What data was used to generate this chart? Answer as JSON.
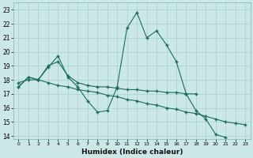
{
  "xlabel": "Humidex (Indice chaleur)",
  "ylabel": "",
  "background_color": "#cce8e6",
  "grid_color": "#aad4d0",
  "line_color": "#1a6b5e",
  "xlim": [
    -0.5,
    23.5
  ],
  "ylim": [
    13.8,
    23.5
  ],
  "yticks": [
    14,
    15,
    16,
    17,
    18,
    19,
    20,
    21,
    22,
    23
  ],
  "xticks": [
    0,
    1,
    2,
    3,
    4,
    5,
    6,
    7,
    8,
    9,
    10,
    11,
    12,
    13,
    14,
    15,
    16,
    17,
    18,
    19,
    20,
    21,
    22,
    23
  ],
  "series1_x": [
    0,
    1,
    2,
    3,
    4,
    5,
    6,
    7,
    8,
    9,
    10,
    11,
    12,
    13,
    14,
    15,
    16,
    17,
    18,
    19,
    20,
    21
  ],
  "series1_y": [
    17.5,
    18.2,
    18.0,
    18.9,
    19.7,
    18.2,
    17.5,
    16.5,
    15.7,
    15.8,
    17.5,
    21.7,
    22.8,
    21.0,
    21.5,
    20.5,
    19.3,
    17.0,
    15.8,
    15.2,
    14.1,
    13.9
  ],
  "series2_x": [
    0,
    1,
    2,
    3,
    4,
    5,
    6,
    7,
    8,
    9,
    10,
    11,
    12,
    13,
    14,
    15,
    16,
    17,
    18
  ],
  "series2_y": [
    17.5,
    18.2,
    18.0,
    19.0,
    19.3,
    18.3,
    17.8,
    17.6,
    17.5,
    17.5,
    17.4,
    17.3,
    17.3,
    17.2,
    17.2,
    17.1,
    17.1,
    17.0,
    17.0
  ],
  "series3_x": [
    0,
    1,
    2,
    3,
    4,
    5,
    6,
    7,
    8,
    9,
    10,
    11,
    12,
    13,
    14,
    15,
    16,
    17,
    18,
    19,
    20,
    21,
    22,
    23
  ],
  "series3_y": [
    17.8,
    18.0,
    18.0,
    17.8,
    17.6,
    17.5,
    17.3,
    17.2,
    17.1,
    16.9,
    16.8,
    16.6,
    16.5,
    16.3,
    16.2,
    16.0,
    15.9,
    15.7,
    15.6,
    15.4,
    15.2,
    15.0,
    14.9,
    14.8
  ]
}
